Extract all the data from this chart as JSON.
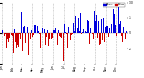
{
  "n_days": 365,
  "seed": 99,
  "blue_color": "#0000dd",
  "red_color": "#cc0000",
  "bg_color": "#ffffff",
  "grid_color": "#999999",
  "ylim": [
    0,
    100
  ],
  "ref": 50,
  "noise_scale": 15,
  "base_amplitude": 10,
  "legend_blue_label": "Above",
  "legend_red_label": "Below",
  "month_ticks": [
    0,
    31,
    59,
    90,
    120,
    151,
    181,
    212,
    243,
    273,
    304,
    334
  ],
  "month_labels": [
    "Jan",
    "Feb",
    "Mar",
    "Apr",
    "May",
    "Jun",
    "Jul",
    "Aug",
    "Sep",
    "Oct",
    "Nov",
    "Dec"
  ],
  "right_yticks": [
    100,
    75,
    50,
    25
  ],
  "right_yticklabels": [
    "100",
    "75",
    "50",
    "25"
  ],
  "bar_width": 0.9,
  "figwidth": 1.6,
  "figheight": 0.87,
  "dpi": 100
}
